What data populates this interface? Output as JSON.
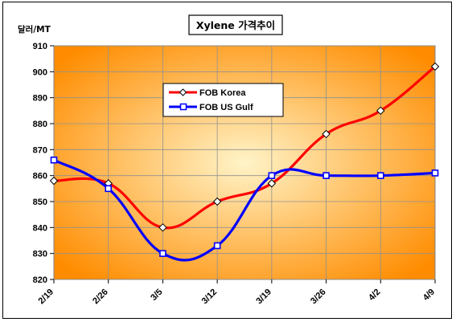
{
  "chart_data": {
    "type": "line",
    "title": "Xylene 가격추이",
    "ylabel": "달러/MT",
    "xlabel": "",
    "categories": [
      "2/19",
      "2/26",
      "3/5",
      "3/12",
      "3/19",
      "3/26",
      "4/2",
      "4/9"
    ],
    "ylim": [
      820,
      910
    ],
    "yticks": [
      820,
      830,
      840,
      850,
      860,
      870,
      880,
      890,
      900,
      910
    ],
    "grid": true,
    "legend_position": "upper-left-center",
    "series": [
      {
        "name": "FOB Korea",
        "values": [
          858,
          857,
          840,
          850,
          857,
          876,
          885,
          902
        ],
        "color": "#ff0000",
        "marker": "diamond"
      },
      {
        "name": "FOB US Gulf",
        "values": [
          866,
          855,
          830,
          833,
          860,
          860,
          860,
          861
        ],
        "color": "#0000ff",
        "marker": "square"
      }
    ]
  },
  "colors": {
    "plot_bg_center": "#fff4c8",
    "plot_bg_edge": "#ff8c00"
  }
}
